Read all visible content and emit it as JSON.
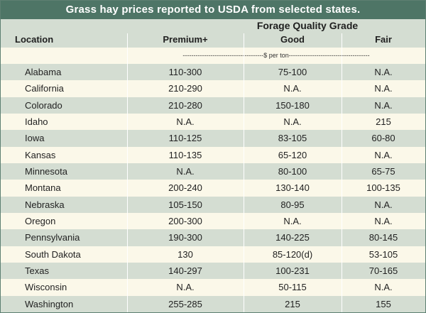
{
  "title": "Grass hay prices reported to USDA from selected states.",
  "header": {
    "location": "Location",
    "group": "Forage Quality Grade",
    "premium": "Premium+",
    "good": "Good",
    "fair": "Fair"
  },
  "units": "--------------------------------------$ per ton--------------------------------------",
  "colors": {
    "title_bar": "#4e7566",
    "shaded_row": "#d4ddd2",
    "light_row": "#fbf8e9",
    "border": "#5d7f72"
  },
  "rows": [
    {
      "location": "Alabama",
      "premium": "110-300",
      "good": "75-100",
      "fair": "N.A."
    },
    {
      "location": "California",
      "premium": "210-290",
      "good": "N.A.",
      "fair": "N.A."
    },
    {
      "location": "Colorado",
      "premium": "210-280",
      "good": "150-180",
      "fair": "N.A."
    },
    {
      "location": "Idaho",
      "premium": "N.A.",
      "good": "N.A.",
      "fair": "215"
    },
    {
      "location": "Iowa",
      "premium": "110-125",
      "good": "83-105",
      "fair": "60-80"
    },
    {
      "location": "Kansas",
      "premium": "110-135",
      "good": "65-120",
      "fair": "N.A."
    },
    {
      "location": "Minnesota",
      "premium": "N.A.",
      "good": "80-100",
      "fair": "65-75"
    },
    {
      "location": "Montana",
      "premium": "200-240",
      "good": "130-140",
      "fair": "100-135"
    },
    {
      "location": "Nebraska",
      "premium": "105-150",
      "good": "80-95",
      "fair": "N.A."
    },
    {
      "location": "Oregon",
      "premium": "200-300",
      "good": "N.A.",
      "fair": "N.A."
    },
    {
      "location": "Pennsylvania",
      "premium": "190-300",
      "good": "140-225",
      "fair": "80-145"
    },
    {
      "location": "South Dakota",
      "premium": "130",
      "good": "85-120(d)",
      "fair": "53-105"
    },
    {
      "location": "Texas",
      "premium": "140-297",
      "good": "100-231",
      "fair": "70-165"
    },
    {
      "location": "Wisconsin",
      "premium": "N.A.",
      "good": "50-115",
      "fair": "N.A."
    },
    {
      "location": "Washington",
      "premium": "255-285",
      "good": "215",
      "fair": "155"
    }
  ]
}
